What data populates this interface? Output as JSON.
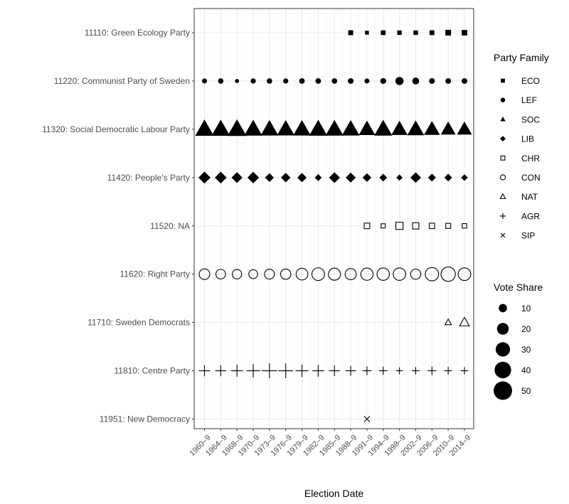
{
  "chart_data": {
    "type": "scatter",
    "xlabel": "Election Date",
    "x_categories": [
      "1960–9",
      "1964–9",
      "1968–9",
      "1970–9",
      "1973–9",
      "1976–9",
      "1979–9",
      "1982–9",
      "1985–9",
      "1988–9",
      "1991–9",
      "1994–9",
      "1998–9",
      "2002–9",
      "2006–9",
      "2010–9",
      "2014–9"
    ],
    "parties": [
      {
        "label": "11110: Green Ecology Party",
        "family": "ECO",
        "points": [
          {
            "x": "1988–9",
            "y": 5.5
          },
          {
            "x": "1991–9",
            "y": 3.4
          },
          {
            "x": "1994–9",
            "y": 5.0
          },
          {
            "x": "1998–9",
            "y": 4.5
          },
          {
            "x": "2002–9",
            "y": 4.6
          },
          {
            "x": "2006–9",
            "y": 5.2
          },
          {
            "x": "2010–9",
            "y": 7.3
          },
          {
            "x": "2014–9",
            "y": 6.9
          }
        ]
      },
      {
        "label": "11220: Communist Party of Sweden",
        "family": "LEF",
        "points": [
          {
            "x": "1960–9",
            "y": 4.5
          },
          {
            "x": "1964–9",
            "y": 5.2
          },
          {
            "x": "1968–9",
            "y": 3.0
          },
          {
            "x": "1970–9",
            "y": 4.8
          },
          {
            "x": "1973–9",
            "y": 5.3
          },
          {
            "x": "1976–9",
            "y": 4.8
          },
          {
            "x": "1979–9",
            "y": 5.6
          },
          {
            "x": "1982–9",
            "y": 5.6
          },
          {
            "x": "1985–9",
            "y": 5.4
          },
          {
            "x": "1988–9",
            "y": 5.8
          },
          {
            "x": "1991–9",
            "y": 4.5
          },
          {
            "x": "1994–9",
            "y": 6.2
          },
          {
            "x": "1998–9",
            "y": 12.0
          },
          {
            "x": "2002–9",
            "y": 8.4
          },
          {
            "x": "2006–9",
            "y": 5.9
          },
          {
            "x": "2010–9",
            "y": 5.6
          },
          {
            "x": "2014–9",
            "y": 5.7
          }
        ]
      },
      {
        "label": "11320: Social Democratic Labour Party",
        "family": "SOC",
        "points": [
          {
            "x": "1960–9",
            "y": 47.8
          },
          {
            "x": "1964–9",
            "y": 47.3
          },
          {
            "x": "1968–9",
            "y": 50.1
          },
          {
            "x": "1970–9",
            "y": 45.3
          },
          {
            "x": "1973–9",
            "y": 43.6
          },
          {
            "x": "1976–9",
            "y": 42.7
          },
          {
            "x": "1979–9",
            "y": 43.2
          },
          {
            "x": "1982–9",
            "y": 45.6
          },
          {
            "x": "1985–9",
            "y": 44.7
          },
          {
            "x": "1988–9",
            "y": 43.2
          },
          {
            "x": "1991–9",
            "y": 37.7
          },
          {
            "x": "1994–9",
            "y": 45.3
          },
          {
            "x": "1998–9",
            "y": 36.4
          },
          {
            "x": "2002–9",
            "y": 39.8
          },
          {
            "x": "2006–9",
            "y": 35.0
          },
          {
            "x": "2010–9",
            "y": 30.7
          },
          {
            "x": "2014–9",
            "y": 31.0
          }
        ]
      },
      {
        "label": "11420: People’s Party",
        "family": "LIB",
        "points": [
          {
            "x": "1960–9",
            "y": 17.5
          },
          {
            "x": "1964–9",
            "y": 17.0
          },
          {
            "x": "1968–9",
            "y": 14.3
          },
          {
            "x": "1970–9",
            "y": 16.2
          },
          {
            "x": "1973–9",
            "y": 9.4
          },
          {
            "x": "1976–9",
            "y": 11.1
          },
          {
            "x": "1979–9",
            "y": 10.6
          },
          {
            "x": "1982–9",
            "y": 5.9
          },
          {
            "x": "1985–9",
            "y": 14.2
          },
          {
            "x": "1988–9",
            "y": 12.2
          },
          {
            "x": "1991–9",
            "y": 9.1
          },
          {
            "x": "1994–9",
            "y": 7.2
          },
          {
            "x": "1998–9",
            "y": 4.7
          },
          {
            "x": "2002–9",
            "y": 13.4
          },
          {
            "x": "2006–9",
            "y": 7.5
          },
          {
            "x": "2010–9",
            "y": 7.1
          },
          {
            "x": "2014–9",
            "y": 5.4
          }
        ]
      },
      {
        "label": "11520: NA",
        "family": "CHR",
        "points": [
          {
            "x": "1991–9",
            "y": 7.1
          },
          {
            "x": "1994–9",
            "y": 4.1
          },
          {
            "x": "1998–9",
            "y": 11.8
          },
          {
            "x": "2002–9",
            "y": 9.1
          },
          {
            "x": "2006–9",
            "y": 6.6
          },
          {
            "x": "2010–9",
            "y": 5.6
          },
          {
            "x": "2014–9",
            "y": 4.6
          }
        ]
      },
      {
        "label": "11620: Right Party",
        "family": "CON",
        "points": [
          {
            "x": "1960–9",
            "y": 16.6
          },
          {
            "x": "1964–9",
            "y": 13.7
          },
          {
            "x": "1968–9",
            "y": 12.9
          },
          {
            "x": "1970–9",
            "y": 11.5
          },
          {
            "x": "1973–9",
            "y": 14.3
          },
          {
            "x": "1976–9",
            "y": 15.6
          },
          {
            "x": "1979–9",
            "y": 20.3
          },
          {
            "x": "1982–9",
            "y": 23.6
          },
          {
            "x": "1985–9",
            "y": 21.3
          },
          {
            "x": "1988–9",
            "y": 18.3
          },
          {
            "x": "1991–9",
            "y": 21.9
          },
          {
            "x": "1994–9",
            "y": 22.4
          },
          {
            "x": "1998–9",
            "y": 22.9
          },
          {
            "x": "2002–9",
            "y": 15.3
          },
          {
            "x": "2006–9",
            "y": 26.2
          },
          {
            "x": "2010–9",
            "y": 30.1
          },
          {
            "x": "2014–9",
            "y": 23.3
          }
        ]
      },
      {
        "label": "11710: Sweden Democrats",
        "family": "NAT",
        "points": [
          {
            "x": "2010–9",
            "y": 5.7
          },
          {
            "x": "2014–9",
            "y": 12.9
          }
        ]
      },
      {
        "label": "11810: Centre Party",
        "family": "AGR",
        "points": [
          {
            "x": "1960–9",
            "y": 13.6
          },
          {
            "x": "1964–9",
            "y": 13.2
          },
          {
            "x": "1968–9",
            "y": 15.7
          },
          {
            "x": "1970–9",
            "y": 19.9
          },
          {
            "x": "1973–9",
            "y": 25.1
          },
          {
            "x": "1976–9",
            "y": 24.1
          },
          {
            "x": "1979–9",
            "y": 18.1
          },
          {
            "x": "1982–9",
            "y": 15.5
          },
          {
            "x": "1985–9",
            "y": 12.4
          },
          {
            "x": "1988–9",
            "y": 11.3
          },
          {
            "x": "1991–9",
            "y": 8.5
          },
          {
            "x": "1994–9",
            "y": 7.7
          },
          {
            "x": "1998–9",
            "y": 5.1
          },
          {
            "x": "2002–9",
            "y": 6.2
          },
          {
            "x": "2006–9",
            "y": 7.9
          },
          {
            "x": "2010–9",
            "y": 6.6
          },
          {
            "x": "2014–9",
            "y": 6.1
          }
        ]
      },
      {
        "label": "11951: New Democracy",
        "family": "SIP",
        "points": [
          {
            "x": "1991–9",
            "y": 6.7
          }
        ]
      }
    ],
    "legend_family": {
      "title": "Party Family",
      "items": [
        {
          "label": "ECO",
          "shape": "filled-square"
        },
        {
          "label": "LEF",
          "shape": "filled-circle"
        },
        {
          "label": "SOC",
          "shape": "filled-triangle"
        },
        {
          "label": "LIB",
          "shape": "filled-diamond"
        },
        {
          "label": "CHR",
          "shape": "open-square"
        },
        {
          "label": "CON",
          "shape": "open-circle"
        },
        {
          "label": "NAT",
          "shape": "open-triangle"
        },
        {
          "label": "AGR",
          "shape": "plus"
        },
        {
          "label": "SIP",
          "shape": "cross"
        }
      ]
    },
    "legend_size": {
      "title": "Vote Share",
      "values": [
        10,
        20,
        30,
        40,
        50
      ]
    },
    "legend_placement": "right",
    "grid": true,
    "colors": {
      "mark": "#000000",
      "panel_border": "#333333",
      "grid": "#ebebeb"
    }
  }
}
